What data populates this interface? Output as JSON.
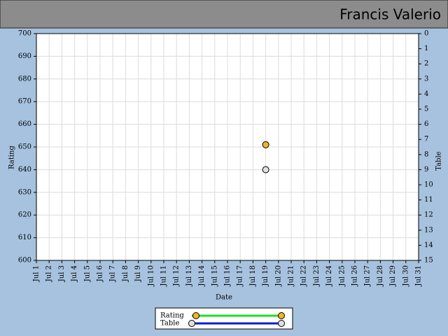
{
  "chart_data": {
    "type": "line",
    "title": "Francis Valerio",
    "x_label": "Date",
    "y_label": "Rating",
    "y2_label": "Table",
    "categories": [
      "Jul 1",
      "Jul 2",
      "Jul 3",
      "Jul 4",
      "Jul 5",
      "Jul 6",
      "Jul 7",
      "Jul 8",
      "Jul 9",
      "Jul 10",
      "Jul 11",
      "Jul 12",
      "Jul 13",
      "Jul 14",
      "Jul 15",
      "Jul 16",
      "Jul 17",
      "Jul 18",
      "Jul 19",
      "Jul 20",
      "Jul 21",
      "Jul 22",
      "Jul 23",
      "Jul 24",
      "Jul 25",
      "Jul 26",
      "Jul 27",
      "Jul 28",
      "Jul 29",
      "Jul 30",
      "Jul 31"
    ],
    "series": [
      {
        "name": "Rating",
        "color": "#f5b324",
        "line_color": "#22dd22",
        "values": [
          null,
          null,
          null,
          null,
          null,
          null,
          null,
          null,
          null,
          null,
          null,
          null,
          null,
          null,
          null,
          null,
          null,
          null,
          651,
          null,
          null,
          null,
          null,
          null,
          null,
          null,
          null,
          null,
          null,
          null,
          null
        ]
      },
      {
        "name": "Table",
        "color": "#e0e0e0",
        "line_color": "#0022cc",
        "axis": "y2",
        "values": [
          null,
          null,
          null,
          null,
          null,
          null,
          null,
          null,
          null,
          null,
          null,
          null,
          null,
          null,
          null,
          null,
          null,
          null,
          9,
          null,
          null,
          null,
          null,
          null,
          null,
          null,
          null,
          null,
          null,
          null,
          null
        ]
      }
    ],
    "ylim": [
      600,
      700
    ],
    "yticks": [
      600,
      610,
      620,
      630,
      640,
      650,
      660,
      670,
      680,
      690,
      700
    ],
    "y2lim": [
      15,
      0
    ],
    "y2ticks": [
      0,
      1,
      2,
      3,
      4,
      5,
      6,
      7,
      8,
      9,
      10,
      11,
      12,
      13,
      14,
      15
    ],
    "grid": true
  }
}
